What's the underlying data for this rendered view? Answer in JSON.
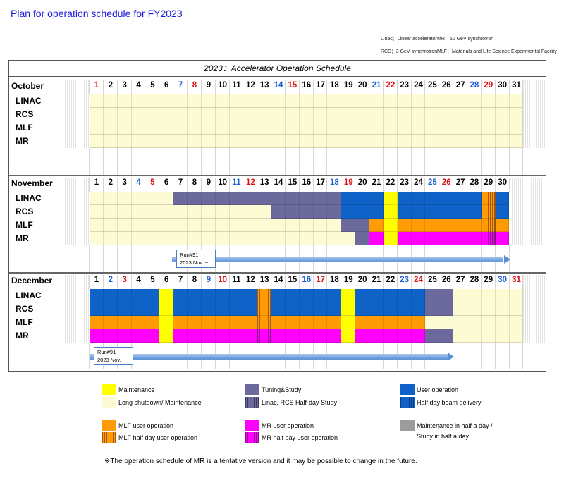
{
  "title": "Plan for operation schedule for FY2023",
  "abbreviations": [
    "Linac：Linear accelerator",
    "MR：50 GeV synchrotron",
    "RCS：3 GeV synchrotron",
    "MLF：Materials and Life Science Experimental Facility"
  ],
  "schedule_title": "2023：Accelerator Operation Schedule",
  "rows": [
    "LINAC",
    "RCS",
    "MLF",
    "MR"
  ],
  "colors": {
    "maintenance": "#ffff00",
    "long_shutdown": "#fcfbd3",
    "tuning": "#6c6a9c",
    "user": "#0f62c8",
    "mlf": "#ff9b04",
    "mr": "#ff00ff",
    "sat": "#1f5fd6",
    "sun": "#dd1111"
  },
  "months": [
    {
      "name": "October",
      "days": 31,
      "first_weekday": 0,
      "segments": [
        {
          "row": 0,
          "from": 1,
          "to": 31,
          "status": "long_shutdown"
        },
        {
          "row": 1,
          "from": 1,
          "to": 31,
          "status": "long_shutdown"
        },
        {
          "row": 2,
          "from": 1,
          "to": 31,
          "status": "long_shutdown"
        },
        {
          "row": 3,
          "from": 1,
          "to": 31,
          "status": "long_shutdown"
        }
      ]
    },
    {
      "name": "November",
      "days": 30,
      "first_weekday": 3,
      "segments": [
        {
          "row": 0,
          "from": 1,
          "to": 6,
          "status": "long_shutdown"
        },
        {
          "row": 0,
          "from": 7,
          "to": 18,
          "status": "tuning"
        },
        {
          "row": 0,
          "from": 19,
          "to": 21,
          "status": "user"
        },
        {
          "row": 0,
          "from": 22,
          "to": 22,
          "status": "maintenance"
        },
        {
          "row": 0,
          "from": 23,
          "to": 28,
          "status": "user"
        },
        {
          "row": 0,
          "from": 29,
          "to": 29,
          "status": "mlf_half"
        },
        {
          "row": 0,
          "from": 30,
          "to": 30,
          "status": "user"
        },
        {
          "row": 1,
          "from": 1,
          "to": 6,
          "status": "long_shutdown"
        },
        {
          "row": 1,
          "from": 7,
          "to": 13,
          "status": "long_shutdown"
        },
        {
          "row": 1,
          "from": 14,
          "to": 18,
          "status": "tuning"
        },
        {
          "row": 1,
          "from": 19,
          "to": 21,
          "status": "user"
        },
        {
          "row": 1,
          "from": 22,
          "to": 22,
          "status": "maintenance"
        },
        {
          "row": 1,
          "from": 23,
          "to": 28,
          "status": "user"
        },
        {
          "row": 1,
          "from": 29,
          "to": 29,
          "status": "mlf_half"
        },
        {
          "row": 1,
          "from": 30,
          "to": 30,
          "status": "user"
        },
        {
          "row": 2,
          "from": 1,
          "to": 18,
          "status": "long_shutdown"
        },
        {
          "row": 2,
          "from": 19,
          "to": 20,
          "status": "tuning"
        },
        {
          "row": 2,
          "from": 21,
          "to": 21,
          "status": "mlf"
        },
        {
          "row": 2,
          "from": 22,
          "to": 22,
          "status": "maintenance"
        },
        {
          "row": 2,
          "from": 23,
          "to": 28,
          "status": "mlf"
        },
        {
          "row": 2,
          "from": 29,
          "to": 29,
          "status": "mlf_half"
        },
        {
          "row": 2,
          "from": 30,
          "to": 30,
          "status": "mlf"
        },
        {
          "row": 3,
          "from": 1,
          "to": 19,
          "status": "long_shutdown"
        },
        {
          "row": 3,
          "from": 20,
          "to": 20,
          "status": "tuning"
        },
        {
          "row": 3,
          "from": 21,
          "to": 21,
          "status": "mr"
        },
        {
          "row": 3,
          "from": 22,
          "to": 22,
          "status": "maintenance"
        },
        {
          "row": 3,
          "from": 23,
          "to": 28,
          "status": "mr"
        },
        {
          "row": 3,
          "from": 29,
          "to": 29,
          "status": "mr_half"
        },
        {
          "row": 3,
          "from": 30,
          "to": 30,
          "status": "mr"
        }
      ],
      "run": {
        "label": "Run#91",
        "date": "2023 Nov. ~",
        "from": 7,
        "to": 30
      }
    },
    {
      "name": "December",
      "days": 31,
      "first_weekday": 5,
      "segments": [
        {
          "row": 0,
          "from": 1,
          "to": 5,
          "status": "user"
        },
        {
          "row": 0,
          "from": 6,
          "to": 6,
          "status": "maintenance"
        },
        {
          "row": 0,
          "from": 7,
          "to": 12,
          "status": "user"
        },
        {
          "row": 0,
          "from": 13,
          "to": 13,
          "status": "mlf_half"
        },
        {
          "row": 0,
          "from": 14,
          "to": 18,
          "status": "user"
        },
        {
          "row": 0,
          "from": 19,
          "to": 19,
          "status": "maintenance"
        },
        {
          "row": 0,
          "from": 20,
          "to": 24,
          "status": "user"
        },
        {
          "row": 0,
          "from": 25,
          "to": 26,
          "status": "tuning"
        },
        {
          "row": 0,
          "from": 27,
          "to": 31,
          "status": "long_shutdown"
        },
        {
          "row": 1,
          "from": 1,
          "to": 5,
          "status": "user"
        },
        {
          "row": 1,
          "from": 6,
          "to": 6,
          "status": "maintenance"
        },
        {
          "row": 1,
          "from": 7,
          "to": 12,
          "status": "user"
        },
        {
          "row": 1,
          "from": 13,
          "to": 13,
          "status": "mlf_half"
        },
        {
          "row": 1,
          "from": 14,
          "to": 18,
          "status": "user"
        },
        {
          "row": 1,
          "from": 19,
          "to": 19,
          "status": "maintenance"
        },
        {
          "row": 1,
          "from": 20,
          "to": 24,
          "status": "user"
        },
        {
          "row": 1,
          "from": 25,
          "to": 26,
          "status": "tuning"
        },
        {
          "row": 1,
          "from": 27,
          "to": 31,
          "status": "long_shutdown"
        },
        {
          "row": 2,
          "from": 1,
          "to": 5,
          "status": "mlf"
        },
        {
          "row": 2,
          "from": 6,
          "to": 6,
          "status": "maintenance"
        },
        {
          "row": 2,
          "from": 7,
          "to": 12,
          "status": "mlf"
        },
        {
          "row": 2,
          "from": 13,
          "to": 13,
          "status": "mlf_half"
        },
        {
          "row": 2,
          "from": 14,
          "to": 18,
          "status": "mlf"
        },
        {
          "row": 2,
          "from": 19,
          "to": 19,
          "status": "maintenance"
        },
        {
          "row": 2,
          "from": 20,
          "to": 24,
          "status": "mlf"
        },
        {
          "row": 2,
          "from": 25,
          "to": 26,
          "status": "long_shutdown"
        },
        {
          "row": 2,
          "from": 27,
          "to": 31,
          "status": "long_shutdown"
        },
        {
          "row": 3,
          "from": 1,
          "to": 5,
          "status": "mr"
        },
        {
          "row": 3,
          "from": 6,
          "to": 6,
          "status": "maintenance"
        },
        {
          "row": 3,
          "from": 7,
          "to": 12,
          "status": "mr"
        },
        {
          "row": 3,
          "from": 13,
          "to": 13,
          "status": "mr_half"
        },
        {
          "row": 3,
          "from": 14,
          "to": 18,
          "status": "mr"
        },
        {
          "row": 3,
          "from": 19,
          "to": 19,
          "status": "maintenance"
        },
        {
          "row": 3,
          "from": 20,
          "to": 24,
          "status": "mr"
        },
        {
          "row": 3,
          "from": 25,
          "to": 26,
          "status": "tuning"
        },
        {
          "row": 3,
          "from": 27,
          "to": 31,
          "status": "long_shutdown"
        }
      ],
      "run": {
        "label": "Run#91",
        "date": "2023 Nov. ~",
        "from": 1,
        "to": 26
      }
    }
  ],
  "legend": [
    {
      "key": "maintenance",
      "text": "Maintenance"
    },
    {
      "key": "long_shutdown",
      "text": "Long shutdown/ Maintenance"
    },
    {
      "key": "tuning",
      "text": "Tuning&Study"
    },
    {
      "key": "tuning_half",
      "text": "Linac, RCS Half-day Study"
    },
    {
      "key": "user",
      "text": "User operation"
    },
    {
      "key": "user_half",
      "text": "Half day beam delivery"
    },
    {
      "key": "mlf",
      "text": "MLF user operation"
    },
    {
      "key": "mlf_half",
      "text": "MLF half day user operation"
    },
    {
      "key": "mr",
      "text": "MR user operation"
    },
    {
      "key": "mr_half",
      "text": "MR half day user operation"
    },
    {
      "key": "half_maint",
      "text": "Maintenance in half a day /"
    },
    {
      "key": "half_maint2",
      "text": "Study in half a day"
    }
  ],
  "footnote": "※The operation schedule of MR is a tentative version and it may be possible to change in the future."
}
